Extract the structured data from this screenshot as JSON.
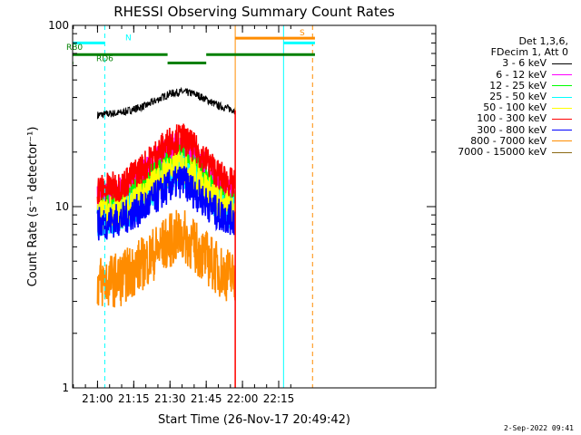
{
  "chart_data": {
    "type": "line",
    "title": "RHESSI Observing Summary Count Rates",
    "xlabel": "Start Time (26-Nov-17 20:49:42)",
    "ylabel": "Count Rate (s⁻¹ detector⁻¹)",
    "y_scale": "log",
    "ylim": [
      1,
      100
    ],
    "xlim": [
      "20:49:42",
      "23:20:00"
    ],
    "x_ticks": [
      "21:00",
      "21:15",
      "21:30",
      "21:45",
      "22:00",
      "22:15"
    ],
    "y_ticks": [
      "1",
      "10",
      "100"
    ],
    "grid": false,
    "legend_position": "right",
    "legend_header": [
      "Det 1,3,6,",
      "FDecim 1, Att 0"
    ],
    "series": [
      {
        "name": "3 - 6 keV",
        "color": "#000000",
        "x": [
          "21:00",
          "21:10",
          "21:20",
          "21:30",
          "21:35",
          "21:40",
          "21:50",
          "21:57"
        ],
        "values": [
          32,
          33,
          36,
          42,
          43,
          42,
          36,
          34
        ]
      },
      {
        "name": "6 - 12 keV",
        "color": "#ff00ff",
        "x": [
          "21:00",
          "21:10",
          "21:20",
          "21:30",
          "21:35",
          "21:40",
          "21:50",
          "21:57"
        ],
        "values": [
          11,
          12,
          15,
          20,
          21,
          19,
          13,
          12
        ]
      },
      {
        "name": "12 - 25 keV",
        "color": "#00ff00",
        "x": [
          "21:00",
          "21:10",
          "21:20",
          "21:30",
          "21:35",
          "21:40",
          "21:50",
          "21:57"
        ],
        "values": [
          9.5,
          10,
          13,
          17,
          18,
          16,
          11,
          10
        ]
      },
      {
        "name": "25 - 50 keV",
        "color": "#00ffff",
        "x": [
          "21:00",
          "21:10",
          "21:20",
          "21:30",
          "21:35",
          "21:40",
          "21:50",
          "21:57"
        ],
        "values": [
          8.5,
          9,
          11,
          15,
          16,
          14,
          10,
          9
        ]
      },
      {
        "name": "50 - 100 keV",
        "color": "#ffff00",
        "x": [
          "21:00",
          "21:10",
          "21:20",
          "21:30",
          "21:35",
          "21:40",
          "21:50",
          "21:57"
        ],
        "values": [
          9,
          9.5,
          12,
          16,
          17,
          15,
          10.5,
          9.5
        ]
      },
      {
        "name": "100 - 300 keV",
        "color": "#ff0000",
        "x": [
          "21:00",
          "21:10",
          "21:20",
          "21:30",
          "21:35",
          "21:40",
          "21:50",
          "21:57"
        ],
        "values": [
          12.5,
          13,
          17,
          23,
          24,
          21,
          15,
          13
        ]
      },
      {
        "name": "300 - 800 keV",
        "color": "#0000ff",
        "x": [
          "21:00",
          "21:10",
          "21:20",
          "21:30",
          "21:35",
          "21:40",
          "21:50",
          "21:57"
        ],
        "values": [
          8,
          8.5,
          10,
          13,
          14,
          12,
          9,
          8.5
        ]
      },
      {
        "name": "800 - 7000 keV",
        "color": "#ff8c00",
        "x": [
          "21:00",
          "21:10",
          "21:20",
          "21:30",
          "21:35",
          "21:40",
          "21:50",
          "21:57"
        ],
        "values": [
          3.8,
          4,
          5,
          6.5,
          7,
          6,
          4.5,
          4
        ]
      },
      {
        "name": "7000 - 15000 keV",
        "color": "#8b6914",
        "x": [],
        "values": []
      }
    ],
    "flags": [
      {
        "label": "N",
        "color": "#00ffff",
        "segments": [
          [
            "20:49:42",
            "21:03"
          ],
          [
            "22:17",
            "22:30"
          ]
        ],
        "value": 80
      },
      {
        "label": "S",
        "color": "#ff8c00",
        "segments": [
          [
            "21:57",
            "22:30"
          ]
        ],
        "value": 85
      },
      {
        "label": "RB0",
        "color": "#008000",
        "segments": [
          [
            "20:49:42",
            "21:29"
          ],
          [
            "21:45",
            "22:30"
          ]
        ],
        "value": 69
      },
      {
        "label": "RD6",
        "color": "#008000",
        "segments": [
          [
            "20:49:42",
            "20:50"
          ],
          [
            "21:29",
            "21:45"
          ]
        ],
        "value": 62
      }
    ],
    "vertical_lines": [
      {
        "color": "#00ffff",
        "style": "solid",
        "x": "20:49:42"
      },
      {
        "color": "#00ffff",
        "style": "dashed",
        "x": "21:03"
      },
      {
        "color": "#ff8c00",
        "style": "solid",
        "x": "21:57"
      },
      {
        "color": "#00ffff",
        "style": "solid",
        "x": "22:17"
      },
      {
        "color": "#ff8c00",
        "style": "dashed",
        "x": "22:29"
      }
    ]
  },
  "footer_date": "2-Sep-2022 09:41"
}
